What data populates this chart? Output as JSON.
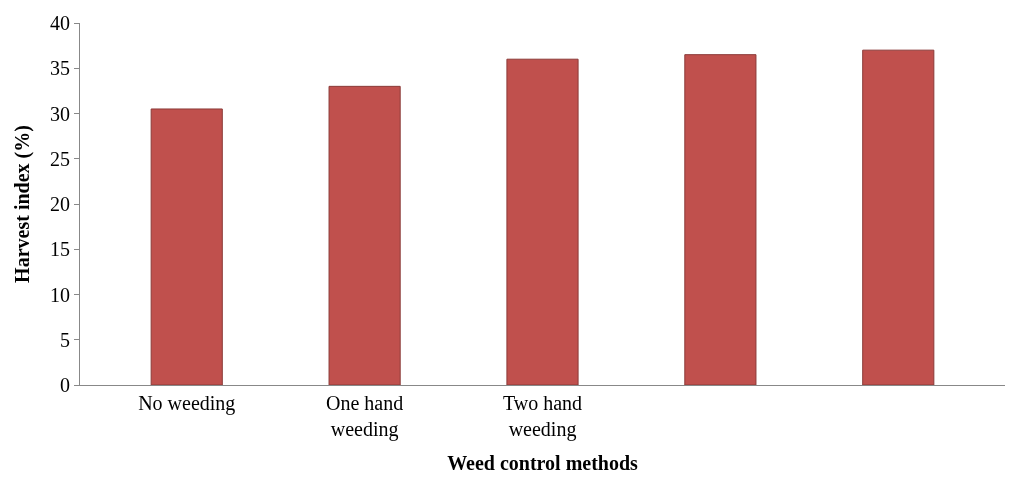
{
  "chart_data": {
    "type": "bar",
    "xlabel": "Weed control methods",
    "ylabel": "Harvest index (%)",
    "categories": [
      "No weeding",
      "One hand weeding",
      "Two hand weeding",
      null,
      null
    ],
    "values": [
      30.5,
      33,
      36,
      36.5,
      37
    ],
    "color": "#c0504d",
    "ylim": [
      0,
      40
    ],
    "yticks": [
      0,
      5,
      10,
      15,
      20,
      25,
      30,
      35,
      40
    ],
    "grid": false
  }
}
